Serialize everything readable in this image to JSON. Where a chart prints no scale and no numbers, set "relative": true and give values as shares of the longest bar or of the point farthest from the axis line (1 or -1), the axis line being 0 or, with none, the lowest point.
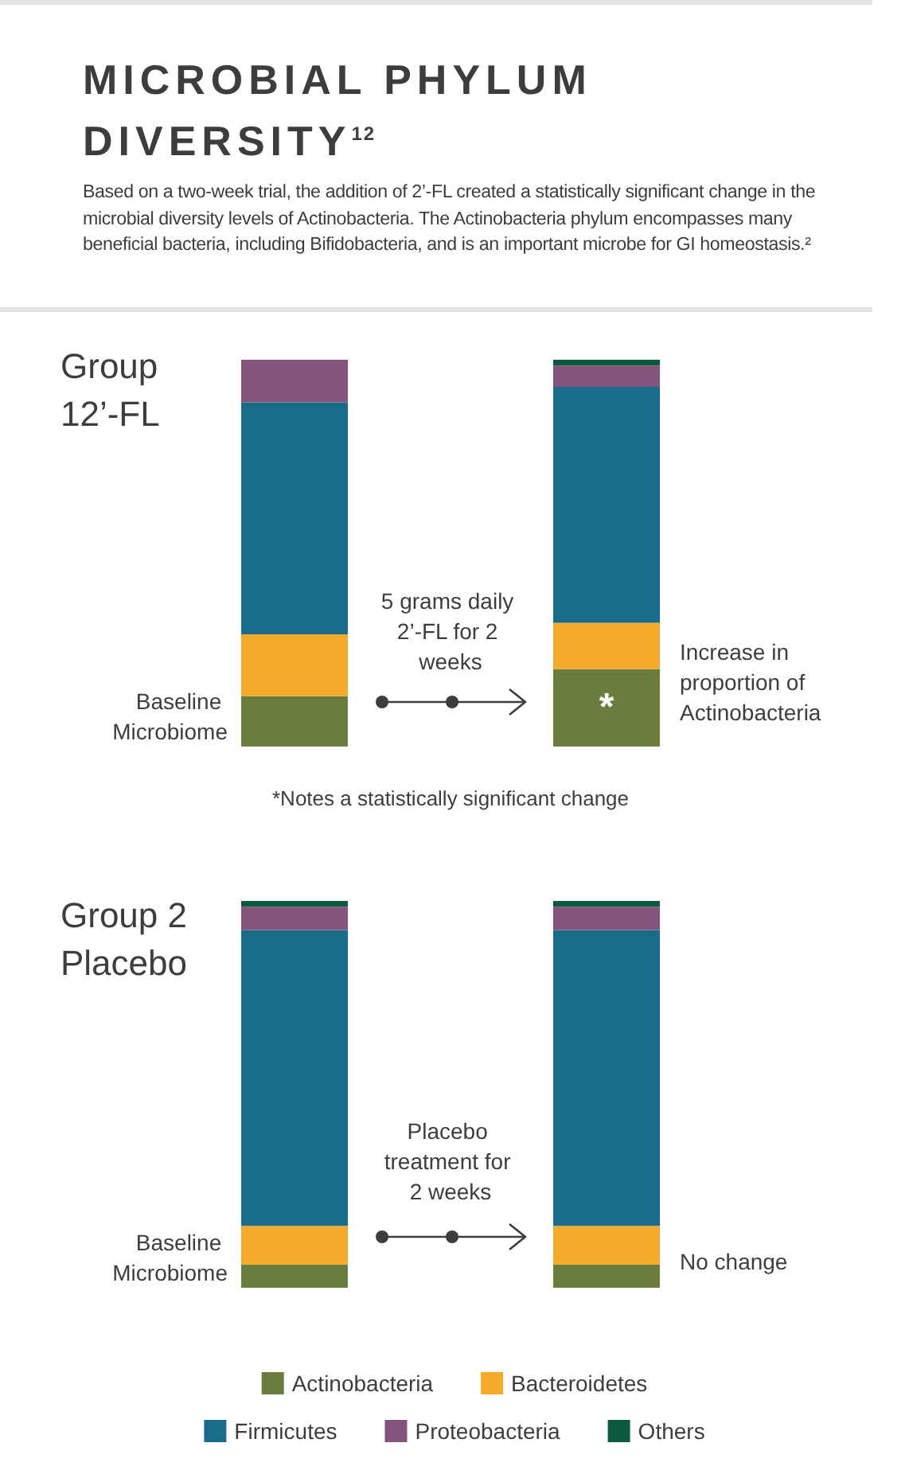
{
  "chart_data": [
    {
      "type": "bar",
      "title": "MICROBIAL PHYLUM DIVERSITY$^{12}$",
      "subtitle": "Based on a two-week trial, the addition of 2’-FL created a statistically significant change in the microbial diversity levels of Actinobacteria. The Actinobacteria phylum encompasses many beneficial bacteria, including Bifidobacteria, and is an important microbe for GI homeostasis.²",
      "xlabel": "Group 12’-FL",
      "relative": true,
      "stacked": true,
      "legend": false,
      "categories": [
        "Baseline Microbiome",
        null
      ],
      "annotations": [
        "5 grams daily 2’-FL for 2 weeks",
        "Increase in proportion of Actinobacteria",
        "*",
        "*Notes a statistically significant change"
      ],
      "series": [
        {
          "color": "#6a7d3f",
          "values": [
            0.13,
            0.2
          ]
        },
        {
          "color": "#f4aa2a",
          "values": [
            0.16,
            0.12
          ]
        },
        {
          "color": "#1a6d8a",
          "values": [
            0.6,
            0.61
          ]
        },
        {
          "color": "#84547c",
          "values": [
            0.11,
            0.055
          ]
        },
        {
          "color": "#0d5b3e",
          "values": [
            0,
            0.015
          ]
        }
      ]
    },
    {
      "type": "bar",
      "xlabel": "Group 2 Placebo",
      "relative": true,
      "stacked": true,
      "legend": "bottom",
      "categories": [
        "Baseline Microbiome",
        null
      ],
      "annotations": [
        "Placebo treatment for 2 weeks",
        "No change"
      ],
      "series": [
        {
          "name": "Actinobacteria",
          "color": "#6a7d3f",
          "values": [
            0.06,
            0.06
          ]
        },
        {
          "name": "Bacteroidetes",
          "color": "#f4aa2a",
          "values": [
            0.1,
            0.1
          ]
        },
        {
          "name": "Firmicutes",
          "color": "#1a6d8a",
          "values": [
            0.765,
            0.765
          ]
        },
        {
          "name": "Proteobacteria",
          "color": "#84547c",
          "values": [
            0.06,
            0.06
          ]
        },
        {
          "name": "Others",
          "color": "#0d5b3e",
          "values": [
            0.015,
            0.015
          ]
        }
      ]
    }
  ]
}
